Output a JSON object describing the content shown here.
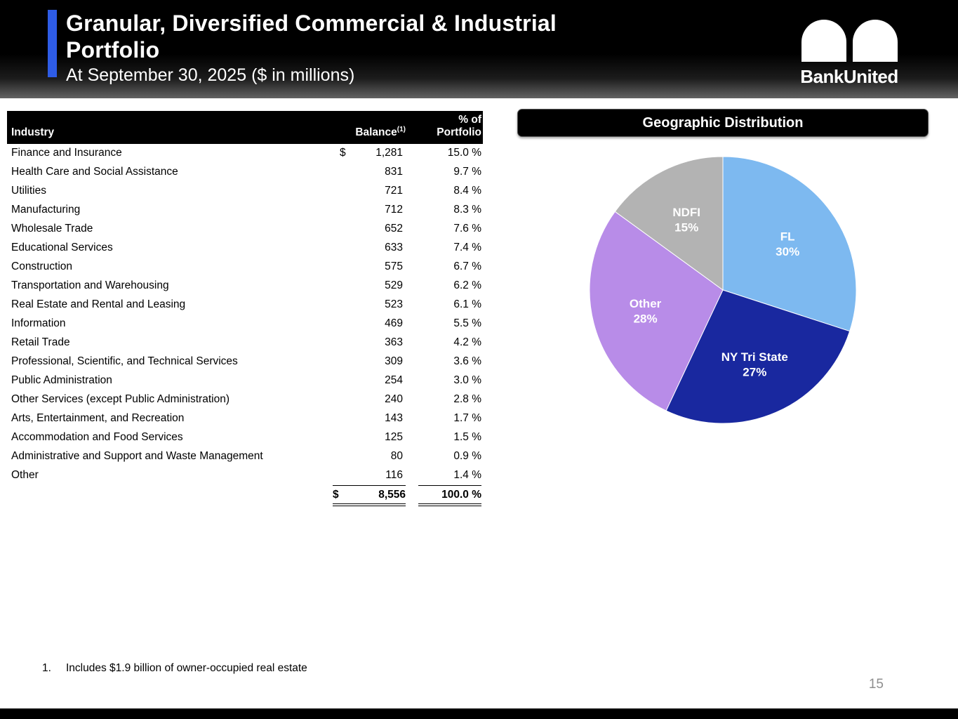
{
  "header": {
    "title_line1": "Granular, Diversified Commercial & Industrial",
    "title_line2": "Portfolio",
    "subtitle": "At September 30, 2025 ($ in millions)",
    "logo_text": "BankUnited",
    "accent_color": "#2e5ce6"
  },
  "table": {
    "col_industry": "Industry",
    "col_balance": "Balance",
    "col_balance_sup": "(1)",
    "col_pct": "% of\nPortfolio",
    "rows": [
      {
        "industry": "Finance and Insurance",
        "dollar": "$",
        "balance": "1,281",
        "pct": "15.0 %"
      },
      {
        "industry": "Health Care and Social Assistance",
        "dollar": "",
        "balance": "831",
        "pct": "9.7 %"
      },
      {
        "industry": "Utilities",
        "dollar": "",
        "balance": "721",
        "pct": "8.4 %"
      },
      {
        "industry": "Manufacturing",
        "dollar": "",
        "balance": "712",
        "pct": "8.3 %"
      },
      {
        "industry": "Wholesale Trade",
        "dollar": "",
        "balance": "652",
        "pct": "7.6 %"
      },
      {
        "industry": "Educational Services",
        "dollar": "",
        "balance": "633",
        "pct": "7.4 %"
      },
      {
        "industry": "Construction",
        "dollar": "",
        "balance": "575",
        "pct": "6.7 %"
      },
      {
        "industry": "Transportation and Warehousing",
        "dollar": "",
        "balance": "529",
        "pct": "6.2 %"
      },
      {
        "industry": "Real Estate and Rental and Leasing",
        "dollar": "",
        "balance": "523",
        "pct": "6.1 %"
      },
      {
        "industry": "Information",
        "dollar": "",
        "balance": "469",
        "pct": "5.5 %"
      },
      {
        "industry": "Retail Trade",
        "dollar": "",
        "balance": "363",
        "pct": "4.2 %"
      },
      {
        "industry": "Professional, Scientific, and Technical Services",
        "dollar": "",
        "balance": "309",
        "pct": "3.6 %"
      },
      {
        "industry": "Public Administration",
        "dollar": "",
        "balance": "254",
        "pct": "3.0 %"
      },
      {
        "industry": "Other Services (except Public Administration)",
        "dollar": "",
        "balance": "240",
        "pct": "2.8 %"
      },
      {
        "industry": "Arts, Entertainment, and Recreation",
        "dollar": "",
        "balance": "143",
        "pct": "1.7 %"
      },
      {
        "industry": "Accommodation and Food Services",
        "dollar": "",
        "balance": "125",
        "pct": "1.5 %"
      },
      {
        "industry": "Administrative and Support and Waste Management",
        "dollar": "",
        "balance": "80",
        "pct": "0.9 %"
      },
      {
        "industry": "Other",
        "dollar": "",
        "balance": "116",
        "pct": "1.4 %"
      }
    ],
    "total": {
      "dollar": "$",
      "balance": "8,556",
      "pct": "100.0 %"
    }
  },
  "chart": {
    "title": "Geographic Distribution"
  },
  "chart_data": {
    "type": "pie",
    "title": "Geographic Distribution",
    "start_angle": "12 o'clock",
    "direction": "clockwise",
    "slices": [
      {
        "label": "FL",
        "value": 30,
        "display_value": "30%",
        "color": "#7db9f0"
      },
      {
        "label": "NY Tri State",
        "value": 27,
        "display_value": "27%",
        "color": "#19289f"
      },
      {
        "label": "Other",
        "value": 28,
        "display_value": "28%",
        "color": "#b88ce8"
      },
      {
        "label": "NDFI",
        "value": 15,
        "display_value": "15%",
        "color": "#b3b3b3"
      }
    ]
  },
  "footnote": {
    "marker": "1.",
    "text": "Includes $1.9 billion of owner-occupied real estate"
  },
  "page_number": "15"
}
